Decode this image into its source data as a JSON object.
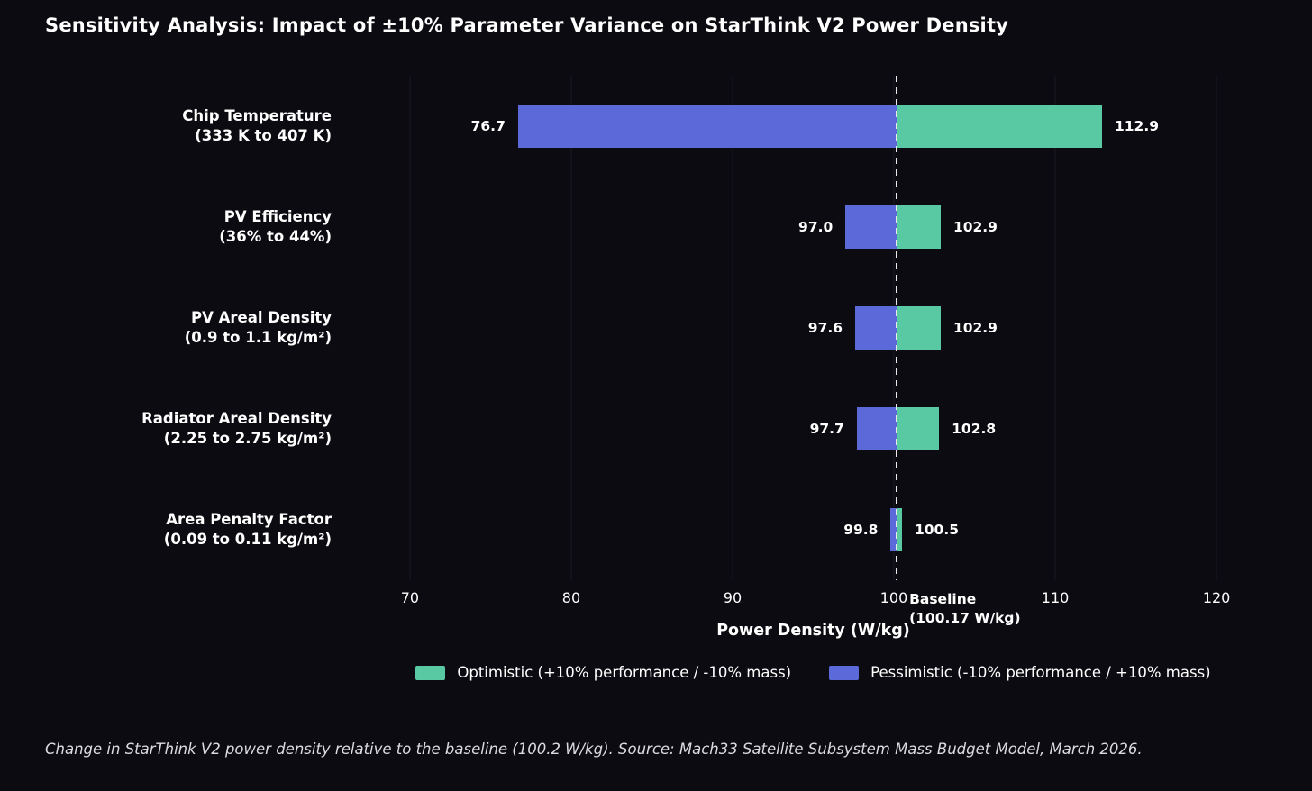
{
  "title": "Sensitivity Analysis: Impact of ±10% Parameter Variance on StarThink V2 Power Density",
  "caption": "Change in StarThink V2 power density relative to the baseline (100.2 W/kg). Source: Mach33 Satellite Subsystem Mass Budget Model, March 2026.",
  "colors": {
    "background": "#0b0b11",
    "optimistic": "#58c9a2",
    "pessimistic": "#5b6ad8",
    "gridline": "#1a1a24",
    "baseline_line": "#e9e9ec",
    "text": "#ffffff",
    "caption_text": "#dcdce0"
  },
  "chart_data": {
    "type": "bar",
    "subtype": "tornado-sensitivity",
    "title": "Sensitivity Analysis: Impact of ±10% Parameter Variance on StarThink V2 Power Density",
    "xlabel": "Power Density (W/kg)",
    "xlim": [
      69,
      121
    ],
    "xticks": [
      70,
      80,
      90,
      100,
      110,
      120
    ],
    "grid": "vertical-faint",
    "baseline": {
      "value": 100.17,
      "label_line1": "Baseline",
      "label_line2": "(100.17 W/kg)"
    },
    "categories": [
      {
        "name": "Chip Temperature",
        "range": "(333 K to 407 K)",
        "pessimistic": 76.7,
        "optimistic": 112.9,
        "pessimistic_label": "76.7",
        "optimistic_label": "112.9"
      },
      {
        "name": "PV Efficiency",
        "range": "(36% to 44%)",
        "pessimistic": 97.0,
        "optimistic": 102.9,
        "pessimistic_label": "97.0",
        "optimistic_label": "102.9"
      },
      {
        "name": "PV Areal Density",
        "range": "(0.9 to 1.1 kg/m²)",
        "pessimistic": 97.6,
        "optimistic": 102.9,
        "pessimistic_label": "97.6",
        "optimistic_label": "102.9"
      },
      {
        "name": "Radiator Areal Density",
        "range": "(2.25 to 2.75 kg/m²)",
        "pessimistic": 97.7,
        "optimistic": 102.8,
        "pessimistic_label": "97.7",
        "optimistic_label": "102.8"
      },
      {
        "name": "Area Penalty Factor",
        "range": "(0.09 to 0.11 kg/m²)",
        "pessimistic": 99.8,
        "optimistic": 100.5,
        "pessimistic_label": "99.8",
        "optimistic_label": "100.5"
      }
    ],
    "legend": {
      "position": "bottom-center",
      "items": [
        {
          "key": "optimistic",
          "label": "Optimistic (+10% performance / -10% mass)",
          "color": "#58c9a2"
        },
        {
          "key": "pessimistic",
          "label": "Pessimistic (-10% performance / +10% mass)",
          "color": "#5b6ad8"
        }
      ]
    }
  }
}
